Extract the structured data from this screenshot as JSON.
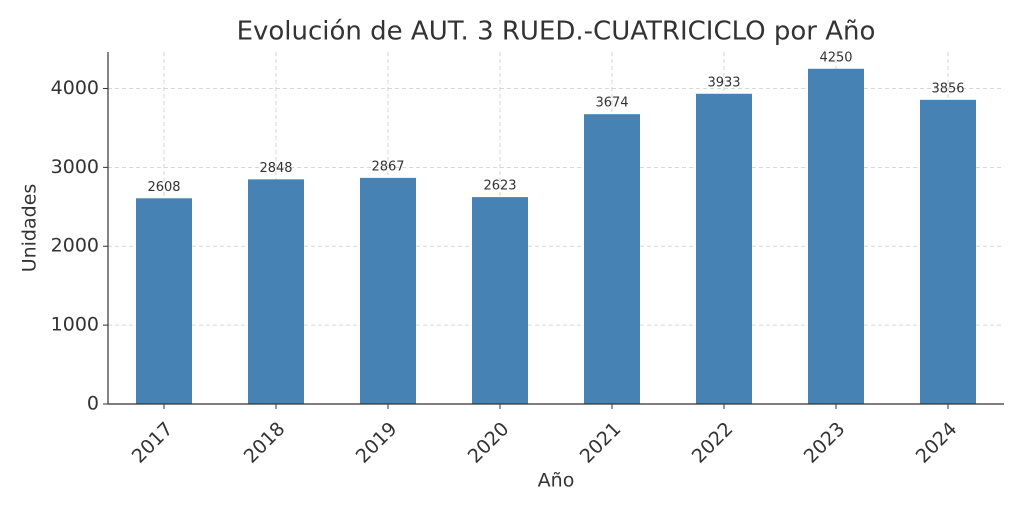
{
  "chart_data": {
    "type": "bar",
    "title": "Evolución de AUT. 3 RUED.-CUATRICICLO por Año",
    "x_label": "Año",
    "y_label": "Unidades",
    "categories": [
      "2017",
      "2018",
      "2019",
      "2020",
      "2021",
      "2022",
      "2023",
      "2024"
    ],
    "values": [
      2608,
      2848,
      2867,
      2623,
      3674,
      3933,
      4250,
      3856
    ],
    "color": "#4682b4",
    "ylim": [
      0,
      4462.5
    ],
    "yticks": [
      0,
      1000,
      2000,
      3000,
      4000
    ],
    "grid": true
  }
}
